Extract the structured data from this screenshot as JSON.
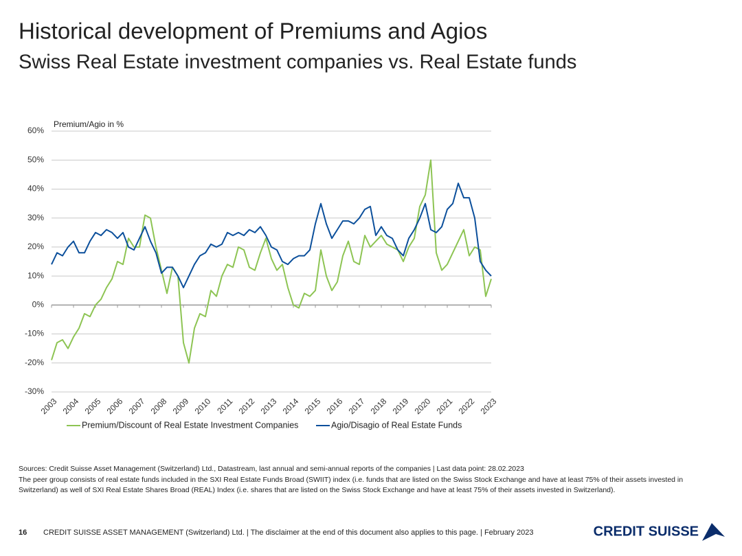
{
  "chart_data": {
    "type": "line",
    "title": "Historical development of Premiums and Agios",
    "subtitle": "Swiss Real Estate investment companies vs. Real Estate funds",
    "y_label": "Premium/Agio in %",
    "x": [
      2003,
      2003.25,
      2003.5,
      2003.75,
      2004,
      2004.25,
      2004.5,
      2004.75,
      2005,
      2005.25,
      2005.5,
      2005.75,
      2006,
      2006.25,
      2006.5,
      2006.75,
      2007,
      2007.25,
      2007.5,
      2007.75,
      2008,
      2008.25,
      2008.5,
      2008.75,
      2009,
      2009.25,
      2009.5,
      2009.75,
      2010,
      2010.25,
      2010.5,
      2010.75,
      2011,
      2011.25,
      2011.5,
      2011.75,
      2012,
      2012.25,
      2012.5,
      2012.75,
      2013,
      2013.25,
      2013.5,
      2013.75,
      2014,
      2014.25,
      2014.5,
      2014.75,
      2015,
      2015.25,
      2015.5,
      2015.75,
      2016,
      2016.25,
      2016.5,
      2016.75,
      2017,
      2017.25,
      2017.5,
      2017.75,
      2018,
      2018.25,
      2018.5,
      2018.75,
      2019,
      2019.25,
      2019.5,
      2019.75,
      2020,
      2020.25,
      2020.5,
      2020.75,
      2021,
      2021.25,
      2021.5,
      2021.75,
      2022,
      2022.25,
      2022.5,
      2022.75,
      2023
    ],
    "series": [
      {
        "name": "Premium/Discount of Real Estate Investment Companies",
        "color": "#8dc453",
        "values": [
          -19,
          -13,
          -12,
          -15,
          -11,
          -8,
          -3,
          -4,
          0,
          2,
          6,
          9,
          15,
          14,
          23,
          20,
          20,
          31,
          30,
          20,
          12,
          4,
          13,
          10,
          -13,
          -20,
          -8,
          -3,
          -4,
          5,
          3,
          10,
          14,
          13,
          20,
          19,
          13,
          12,
          18,
          23,
          16,
          12,
          14,
          6,
          0,
          -1,
          4,
          3,
          5,
          19,
          10,
          5,
          8,
          17,
          22,
          15,
          14,
          24,
          20,
          22,
          24,
          21,
          20,
          19,
          15,
          20,
          23,
          34,
          38,
          50,
          18,
          12,
          14,
          18,
          22,
          26,
          17,
          20,
          19,
          3,
          9
        ]
      },
      {
        "name": "Agio/Disagio of Real Estate Funds",
        "color": "#0b4f9b",
        "values": [
          14,
          18,
          17,
          20,
          22,
          18,
          18,
          22,
          25,
          24,
          26,
          25,
          23,
          25,
          20,
          19,
          23,
          27,
          22,
          18,
          11,
          13,
          13,
          10,
          6,
          10,
          14,
          17,
          18,
          21,
          20,
          21,
          25,
          24,
          25,
          24,
          26,
          25,
          27,
          24,
          20,
          19,
          15,
          14,
          16,
          17,
          17,
          19,
          28,
          35,
          28,
          23,
          26,
          29,
          29,
          28,
          30,
          33,
          34,
          24,
          27,
          24,
          23,
          19,
          17,
          23,
          26,
          30,
          35,
          26,
          25,
          27,
          33,
          35,
          42,
          37,
          37,
          30,
          15,
          12,
          10
        ]
      }
    ],
    "xlim": [
      2003,
      2023
    ],
    "xticks": [
      2003,
      2004,
      2005,
      2006,
      2007,
      2008,
      2009,
      2010,
      2011,
      2012,
      2013,
      2014,
      2015,
      2016,
      2017,
      2018,
      2019,
      2020,
      2021,
      2022,
      2023
    ],
    "ylim": [
      -30,
      60
    ],
    "yticks": [
      {
        "value": -30,
        "label": "-30%"
      },
      {
        "value": -20,
        "label": "-20%"
      },
      {
        "value": -10,
        "label": "-10%"
      },
      {
        "value": 0,
        "label": "0%"
      },
      {
        "value": 10,
        "label": "10%"
      },
      {
        "value": 20,
        "label": "20%"
      },
      {
        "value": 30,
        "label": "30%"
      },
      {
        "value": 40,
        "label": "40%"
      },
      {
        "value": 50,
        "label": "50%"
      },
      {
        "value": 60,
        "label": "60%"
      }
    ],
    "grid": true,
    "legend": "bottom"
  },
  "notes": {
    "sources": "Sources: Credit Suisse Asset Management (Switzerland) Ltd., Datastream, last annual and semi-annual reports of the companies | Last data point: 28.02.2023",
    "peer_group_1": "The peer group consists of real estate funds included in the SXI Real Estate Funds Broad (SWIIT) index (i.e. funds that are listed on the Swiss Stock Exchange and have at least 75% of their assets invested in",
    "peer_group_2": "Switzerland) as well of SXI Real Estate Shares Broad (REAL) Index (i.e. shares that are listed on the Swiss Stock Exchange and have at least 75% of their assets invested in Switzerland)."
  },
  "footer": {
    "page": "16",
    "text": "CREDIT SUISSE ASSET MANAGEMENT (Switzerland) Ltd. | The disclaimer at the end of this document also applies to this page. | February 2023",
    "logo": "CREDIT SUISSE"
  }
}
